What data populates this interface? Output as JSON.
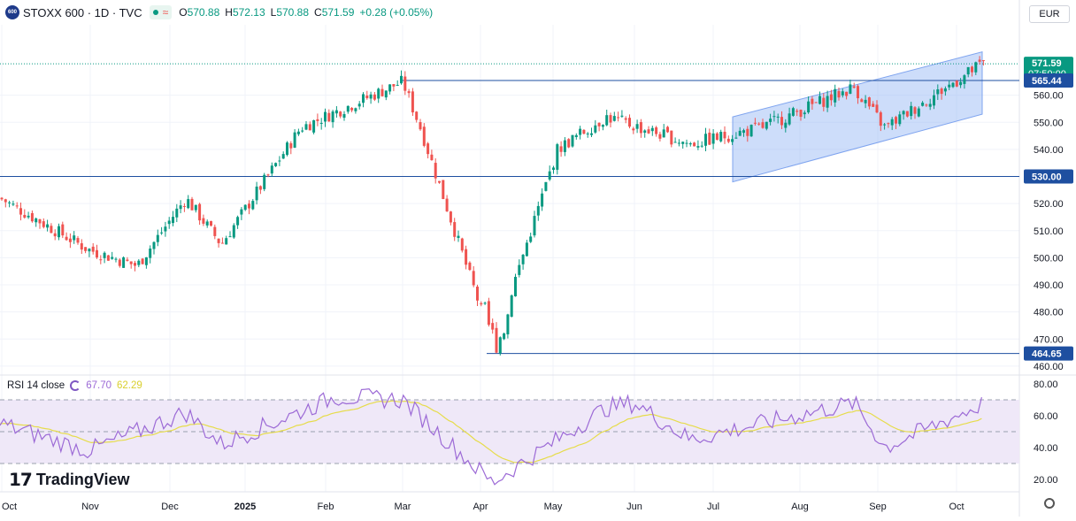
{
  "header": {
    "symbol": "STOXX 600 · 1D · TVC",
    "logo_text": "600",
    "open_label": "O",
    "open": "570.88",
    "high_label": "H",
    "high": "572.13",
    "low_label": "L",
    "low": "570.88",
    "close_label": "C",
    "close": "571.59",
    "change": "+0.28 (+0.05%)",
    "approx_icon": "≈"
  },
  "currency": "EUR",
  "rsi_header": {
    "label": "RSI 14 close",
    "rsi_value": "67.70",
    "ma_value": "62.29"
  },
  "branding": {
    "logo_glyph": "𝟭𝟳",
    "name": "TradingView"
  },
  "colors": {
    "up": "#089981",
    "down": "#ef5350",
    "line": "#2962ff",
    "channel": "#90b4f5",
    "rsi": "#9c6ad6",
    "rsi_ma": "#e6dc4a",
    "rsi_band": "#efe8f8"
  },
  "chart_data": {
    "type": "candlestick",
    "price_axis": {
      "min": 458,
      "max": 586,
      "ticks": [
        "560.00",
        "550.00",
        "540.00",
        "530.00",
        "520.00",
        "510.00",
        "500.00",
        "490.00",
        "480.00",
        "470.00",
        "460.00"
      ]
    },
    "x_labels": [
      "Oct",
      "Nov",
      "Dec",
      "2025",
      "Feb",
      "Mar",
      "Apr",
      "May",
      "Jun",
      "Jul",
      "Aug",
      "Sep",
      "Oct"
    ],
    "price_badges": [
      {
        "value": "571.59",
        "sub": "07:50:00",
        "kind": "last"
      },
      {
        "value": "565.44",
        "kind": "level"
      },
      {
        "value": "530.00",
        "kind": "level"
      },
      {
        "value": "464.65",
        "kind": "level"
      }
    ],
    "horizontal_levels": [
      565.44,
      530.0,
      464.65
    ],
    "channel": {
      "upper": [
        552,
        576
      ],
      "lower": [
        528,
        553
      ]
    },
    "key_points": [
      {
        "date": "Oct 2024",
        "close": 522
      },
      {
        "date": "Nov",
        "close": 503
      },
      {
        "date": "Nov low",
        "close": 497
      },
      {
        "date": "Dec",
        "close": 522
      },
      {
        "date": "2025",
        "close": 505
      },
      {
        "date": "Feb",
        "close": 548
      },
      {
        "date": "Mar",
        "close": 565
      },
      {
        "date": "Mar close",
        "close": 548
      },
      {
        "date": "Apr low",
        "close": 464.65
      },
      {
        "date": "Apr",
        "close": 490
      },
      {
        "date": "May",
        "close": 540
      },
      {
        "date": "Jun",
        "close": 552
      },
      {
        "date": "Jul",
        "close": 542
      },
      {
        "date": "Aug",
        "close": 548
      },
      {
        "date": "Aug high",
        "close": 563
      },
      {
        "date": "Sep",
        "close": 548
      },
      {
        "date": "Oct",
        "close": 571.59
      }
    ],
    "rsi": {
      "axis_ticks": [
        "80.00",
        "60.00",
        "40.00",
        "20.00"
      ],
      "upper_band": 70,
      "lower_band": 30,
      "mid": 50,
      "last_rsi": 67.7,
      "last_ma": 62.29,
      "key_points": [
        {
          "date": "Oct",
          "rsi": 55
        },
        {
          "date": "Nov",
          "rsi": 38
        },
        {
          "date": "Dec",
          "rsi": 62
        },
        {
          "date": "2025",
          "rsi": 42
        },
        {
          "date": "Feb",
          "rsi": 72
        },
        {
          "date": "Mar",
          "rsi": 70
        },
        {
          "date": "Apr",
          "rsi": 18
        },
        {
          "date": "May",
          "rsi": 65
        },
        {
          "date": "Jun",
          "rsi": 68
        },
        {
          "date": "Jul",
          "rsi": 45
        },
        {
          "date": "Aug",
          "rsi": 68
        },
        {
          "date": "Sep",
          "rsi": 40
        },
        {
          "date": "Oct",
          "rsi": 67.7
        }
      ]
    }
  }
}
